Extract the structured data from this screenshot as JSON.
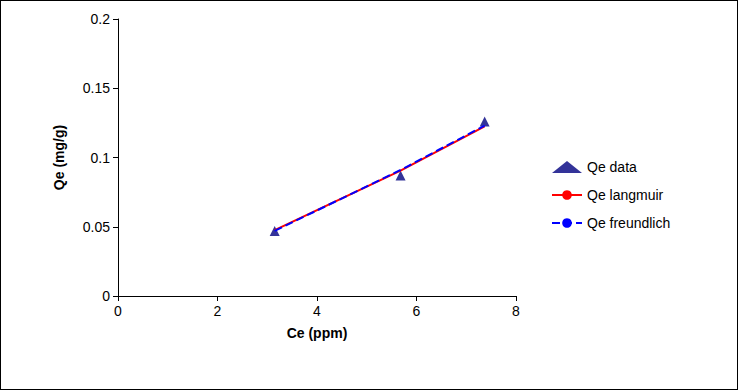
{
  "chart_data": {
    "type": "scatter",
    "x_label": "Ce (ppm)",
    "y_label": "Qe (mg/g)",
    "x": [
      3.15,
      5.68,
      7.37
    ],
    "series": [
      {
        "name": "Qe data",
        "type": "scatter",
        "marker": "triangle",
        "color": "#000080",
        "values": [
          0.047,
          0.087,
          0.126
        ]
      },
      {
        "name": "Qe langmuir",
        "type": "line",
        "line_style": "solid",
        "color": "#ff0000",
        "values": [
          0.0475,
          0.0905,
          0.1225
        ]
      },
      {
        "name": "Qe freundlich",
        "type": "line",
        "line_style": "dashed",
        "color": "#0000ff",
        "values": [
          0.047,
          0.091,
          0.123
        ]
      }
    ],
    "xlim": [
      0,
      8
    ],
    "xticks": [
      0,
      2,
      4,
      6,
      8
    ],
    "ylim": [
      0,
      0.2
    ],
    "yticks": [
      0,
      0.05,
      0.1,
      0.15,
      0.2
    ],
    "grid": false,
    "legend": "right"
  }
}
